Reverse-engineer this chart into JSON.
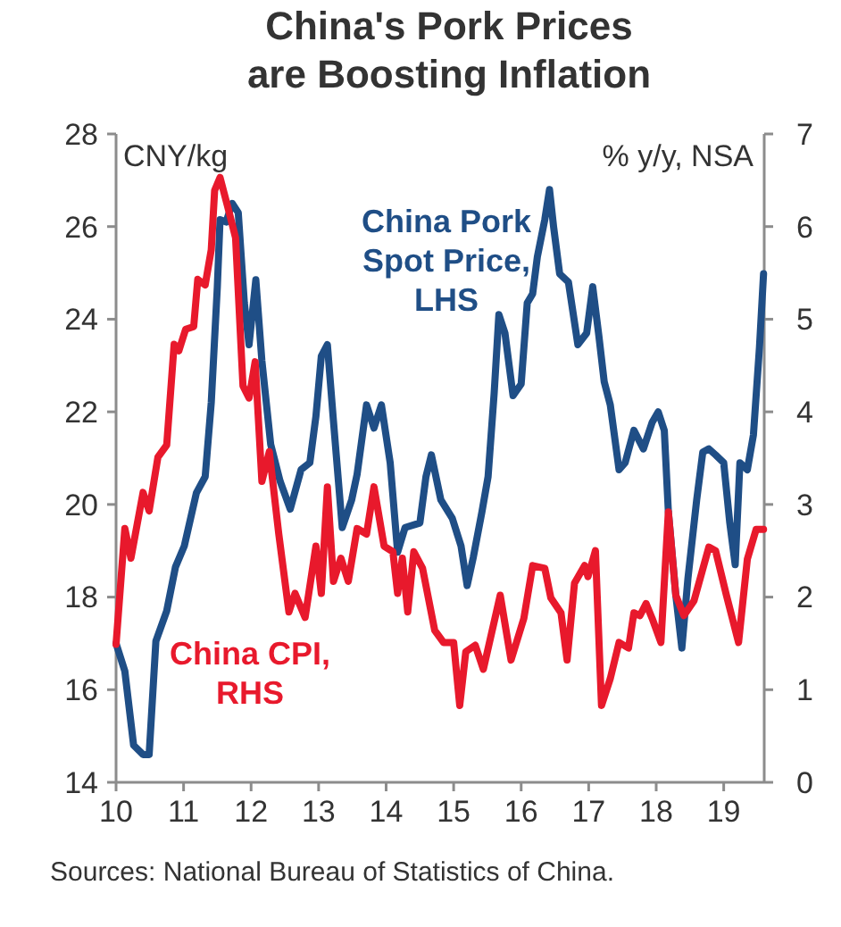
{
  "chart_data": {
    "type": "line",
    "title": "China's Pork Prices are Boosting Inflation",
    "ylabel": "CNY/kg",
    "y2label": "% y/y, NSA",
    "annotations": [
      "Sources: National Bureau of Statistics of China."
    ],
    "xlim": [
      10,
      19.6
    ],
    "xticks": [
      10,
      11,
      12,
      13,
      14,
      15,
      16,
      17,
      18,
      19
    ],
    "ylim": [
      14,
      28
    ],
    "yticks": [
      14,
      16,
      18,
      20,
      22,
      24,
      26,
      28
    ],
    "y2lim": [
      0,
      7
    ],
    "y2ticks": [
      0,
      1,
      2,
      3,
      4,
      5,
      6,
      7
    ],
    "grid": false,
    "line_style": "solid",
    "series": [
      {
        "name": "China Pork Spot Price, LHS",
        "color": "#1f4e86",
        "x": [
          10.0,
          10.13,
          10.26,
          10.4,
          10.49,
          10.59,
          10.75,
          10.88,
          11.01,
          11.19,
          11.32,
          11.41,
          11.5,
          11.54,
          11.63,
          11.72,
          11.81,
          11.9,
          11.97,
          12.07,
          12.16,
          12.29,
          12.43,
          12.58,
          12.74,
          12.87,
          12.96,
          13.04,
          13.13,
          13.22,
          13.35,
          13.49,
          13.57,
          13.71,
          13.82,
          13.93,
          14.06,
          14.17,
          14.28,
          14.5,
          14.59,
          14.67,
          14.81,
          14.98,
          15.11,
          15.2,
          15.29,
          15.42,
          15.51,
          15.6,
          15.67,
          15.76,
          15.88,
          16.0,
          16.09,
          16.17,
          16.24,
          16.35,
          16.42,
          16.48,
          16.57,
          16.7,
          16.84,
          16.97,
          17.06,
          17.15,
          17.23,
          17.32,
          17.45,
          17.54,
          17.67,
          17.81,
          17.94,
          18.03,
          18.12,
          18.18,
          18.29,
          18.38,
          18.47,
          18.6,
          18.69,
          18.78,
          18.88,
          19.0,
          19.09,
          19.17,
          19.24,
          19.35,
          19.44,
          19.53,
          19.59
        ],
        "values": [
          17.0,
          16.4,
          14.8,
          14.6,
          14.6,
          17.05,
          17.7,
          18.65,
          19.1,
          20.25,
          20.6,
          22.2,
          24.7,
          26.15,
          26.1,
          26.5,
          26.3,
          24.35,
          23.45,
          24.85,
          23.1,
          21.3,
          20.5,
          19.9,
          20.75,
          20.9,
          21.9,
          23.2,
          23.45,
          21.8,
          19.5,
          20.1,
          20.65,
          22.15,
          21.65,
          22.15,
          20.9,
          18.97,
          19.5,
          19.6,
          20.6,
          21.07,
          20.1,
          19.7,
          19.1,
          18.25,
          18.85,
          19.85,
          20.6,
          22.4,
          24.1,
          23.7,
          22.35,
          22.6,
          24.35,
          24.55,
          25.35,
          26.15,
          26.8,
          26.0,
          24.98,
          24.8,
          23.45,
          23.7,
          24.7,
          23.65,
          22.65,
          22.15,
          20.75,
          20.9,
          21.6,
          21.2,
          21.77,
          22.0,
          21.6,
          19.85,
          18.05,
          16.9,
          18.4,
          20.1,
          21.13,
          21.2,
          21.07,
          20.9,
          19.6,
          18.7,
          20.9,
          20.75,
          21.5,
          23.4,
          24.98
        ]
      },
      {
        "name": "China CPI, RHS",
        "color": "#e8192c",
        "axis": "y2",
        "x": [
          10.0,
          10.13,
          10.22,
          10.4,
          10.49,
          10.62,
          10.75,
          10.86,
          10.93,
          11.03,
          11.15,
          11.21,
          11.32,
          11.41,
          11.46,
          11.54,
          11.68,
          11.77,
          11.88,
          11.97,
          12.06,
          12.16,
          12.27,
          12.41,
          12.56,
          12.65,
          12.8,
          12.96,
          13.04,
          13.13,
          13.22,
          13.33,
          13.44,
          13.57,
          13.71,
          13.82,
          13.97,
          14.1,
          14.17,
          14.24,
          14.32,
          14.41,
          14.54,
          14.72,
          14.85,
          15.0,
          15.09,
          15.18,
          15.32,
          15.44,
          15.69,
          15.85,
          16.04,
          16.17,
          16.35,
          16.44,
          16.59,
          16.68,
          16.79,
          16.94,
          16.99,
          17.1,
          17.19,
          17.32,
          17.45,
          17.59,
          17.67,
          17.76,
          17.85,
          17.94,
          18.07,
          18.18,
          18.29,
          18.41,
          18.56,
          18.78,
          18.88,
          19.04,
          19.22,
          19.35,
          19.48,
          19.59
        ],
        "values": [
          1.49,
          2.74,
          2.42,
          3.13,
          2.93,
          3.51,
          3.64,
          4.73,
          4.66,
          4.89,
          4.92,
          5.43,
          5.37,
          5.75,
          6.39,
          6.53,
          6.14,
          5.88,
          4.28,
          4.15,
          4.54,
          3.25,
          3.57,
          2.68,
          1.84,
          2.04,
          1.78,
          2.55,
          2.04,
          3.19,
          2.17,
          2.42,
          2.17,
          2.74,
          2.68,
          3.19,
          2.55,
          2.49,
          2.04,
          2.42,
          1.84,
          2.49,
          2.31,
          1.64,
          1.51,
          1.51,
          0.83,
          1.41,
          1.48,
          1.22,
          2.02,
          1.32,
          1.77,
          2.34,
          2.31,
          1.99,
          1.83,
          1.32,
          2.15,
          2.34,
          2.22,
          2.5,
          0.83,
          1.12,
          1.51,
          1.45,
          1.83,
          1.8,
          1.93,
          1.77,
          1.51,
          2.92,
          2.02,
          1.8,
          1.96,
          2.54,
          2.5,
          2.02,
          1.51,
          2.41,
          2.73,
          2.73
        ]
      }
    ]
  }
}
